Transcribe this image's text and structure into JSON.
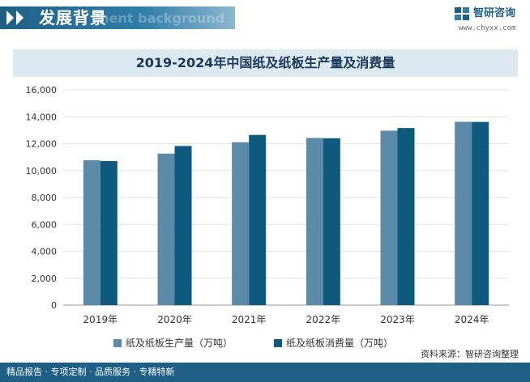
{
  "header": {
    "title": "发展背景",
    "ghost_text": "ment background"
  },
  "brand": {
    "name": "智研咨询",
    "url": "www.chyxx.com",
    "logo_icon": "zhiyan-logo-icon"
  },
  "colors": {
    "header_blue": "#1f5f86",
    "production": "#5b8ba8",
    "consumption": "#0d5a7e",
    "title_band": "#dde9f1"
  },
  "chart_data": {
    "type": "bar",
    "title": "2019-2024年中国纸及纸板生产量及消费量",
    "categories": [
      "2019年",
      "2020年",
      "2021年",
      "2022年",
      "2023年",
      "2024年"
    ],
    "series": [
      {
        "name": "纸及纸板生产量（万吨）",
        "values": [
          10765,
          11260,
          12105,
          12425,
          12965,
          13625
        ]
      },
      {
        "name": "纸及纸板消费量（万吨）",
        "values": [
          10704,
          11827,
          12648,
          12403,
          13165,
          13615
        ]
      }
    ],
    "yticks": [
      "0",
      "2,000",
      "4,000",
      "6,000",
      "8,000",
      "10,000",
      "12,000",
      "14,000",
      "16,000"
    ],
    "ylim": [
      0,
      16000
    ],
    "grid": true,
    "legend_position": "bottom"
  },
  "source": "资料来源：智研咨询整理",
  "footer": "精品报告 · 专项定制 · 品质服务 · 专精特新"
}
